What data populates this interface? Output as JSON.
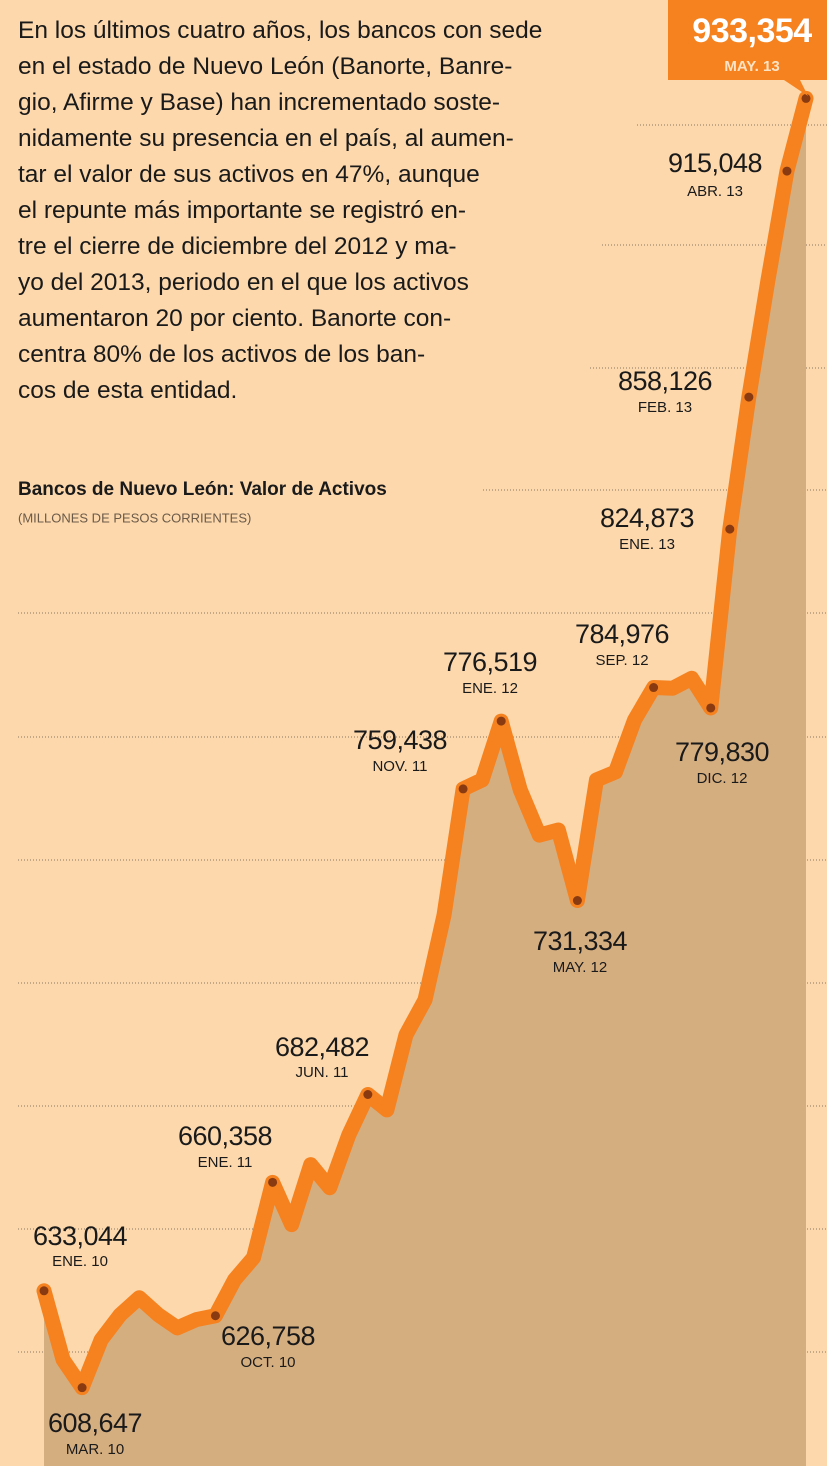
{
  "chart_data": {
    "type": "line",
    "description": [
      "En los últimos cuatro años, los bancos con sede",
      "en el estado de Nuevo León (Banorte, Banre-",
      "gio, Afirme y Base) han incrementado soste-",
      "nidamente su presencia en el país, al aumen-",
      "tar el valor de sus activos en 47%, aunque",
      "el repunte más importante se registró en-",
      "tre el cierre de diciembre del 2012 y ma-",
      "yo del 2013, periodo en el que los activos",
      "aumentaron 20 por ciento. Banorte con-",
      "centra 80% de los activos de los ban-",
      "cos de esta entidad."
    ],
    "title": "Bancos de Nuevo León: Valor de Activos",
    "subtitle": "(MILLONES DE PESOS CORRIENTES)",
    "categories": [
      "ENE. 10",
      null,
      "MAR. 10",
      null,
      null,
      null,
      null,
      null,
      null,
      "OCT. 10",
      null,
      null,
      "ENE. 11",
      null,
      null,
      null,
      null,
      "JUN. 11",
      null,
      null,
      null,
      null,
      "NOV. 11",
      null,
      "ENE. 12",
      null,
      null,
      null,
      "MAY. 12",
      null,
      null,
      null,
      "SEP. 12",
      null,
      null,
      "DIC. 12",
      "ENE. 13",
      "FEB. 13",
      null,
      "ABR. 13",
      "MAY. 13"
    ],
    "values": [
      633044,
      615700,
      608647,
      620700,
      627000,
      631300,
      627000,
      623700,
      625800,
      626758,
      635800,
      641400,
      660358,
      649700,
      664800,
      659000,
      672300,
      682482,
      678600,
      697500,
      706300,
      727700,
      759438,
      761700,
      776519,
      759200,
      747800,
      749100,
      731334,
      761700,
      763700,
      776800,
      784976,
      784800,
      787300,
      779830,
      824873,
      858126,
      887500,
      915048,
      933354
    ],
    "value_labels": [
      "633,044",
      null,
      "608,647",
      null,
      null,
      null,
      null,
      null,
      null,
      "626,758",
      null,
      null,
      "660,358",
      null,
      null,
      null,
      null,
      "682,482",
      null,
      null,
      null,
      null,
      "759,438",
      null,
      "776,519",
      null,
      null,
      null,
      "731,334",
      null,
      null,
      null,
      "784,976",
      null,
      null,
      "779,830",
      "824,873",
      "858,126",
      null,
      "915,048",
      "933,354"
    ],
    "ylim": [
      600000,
      940000
    ],
    "color": "#f5821f",
    "area_color": "#d5ae80",
    "marker_color": "#8a3a10",
    "highlight_color": "#f5821f"
  }
}
